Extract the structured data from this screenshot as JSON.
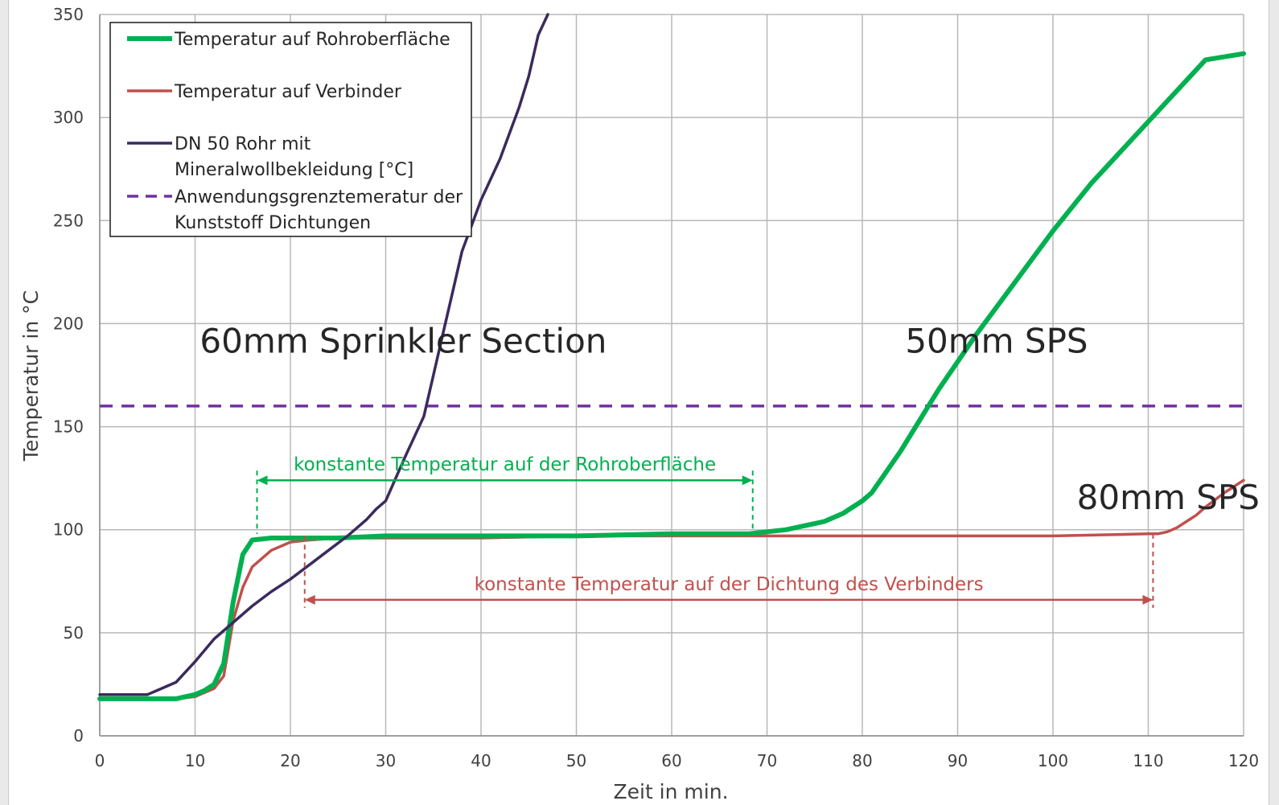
{
  "colors": {
    "green": "#00b050",
    "red": "#c0504d",
    "purple": "#3b2a5e",
    "dashed": "#7030a0",
    "grid": "#b8b8b8",
    "axis": "#8c8c8c"
  },
  "chart_data": {
    "type": "line",
    "xlabel": "Zeit in min.",
    "ylabel": "Temperatur  in °C",
    "xlim": [
      0,
      120
    ],
    "ylim": [
      0,
      350
    ],
    "x_ticks": [
      "0",
      "10",
      "20",
      "30",
      "40",
      "50",
      "60",
      "70",
      "80",
      "90",
      "100",
      "110",
      "120"
    ],
    "y_ticks": [
      "0",
      "50",
      "100",
      "150",
      "200",
      "250",
      "300",
      "350"
    ],
    "grid": true,
    "legend_position": "top-left",
    "series": [
      {
        "name": "Temperatur auf Rohroberfläche",
        "color": "#00b050",
        "style": "solid-thick",
        "x": [
          0,
          5,
          8,
          10,
          11,
          12,
          13,
          14,
          15,
          16,
          18,
          20,
          25,
          30,
          40,
          50,
          60,
          68,
          70,
          72,
          74,
          76,
          78,
          80,
          81,
          84,
          88,
          92,
          96,
          100,
          104,
          108,
          112,
          116,
          120
        ],
        "y": [
          18,
          18,
          18,
          20,
          22,
          25,
          35,
          65,
          88,
          95,
          96,
          96,
          96,
          97,
          97,
          97,
          98,
          98,
          99,
          100,
          102,
          104,
          108,
          114,
          118,
          138,
          168,
          195,
          220,
          245,
          268,
          288,
          308,
          328,
          331
        ]
      },
      {
        "name": "Temperatur auf Verbinder",
        "color": "#c0504d",
        "style": "solid",
        "x": [
          0,
          5,
          8,
          10,
          11,
          12,
          13,
          14,
          15,
          16,
          18,
          20,
          22,
          25,
          30,
          40,
          50,
          60,
          70,
          80,
          90,
          100,
          110,
          111,
          112,
          113,
          114,
          115,
          116,
          118,
          120
        ],
        "y": [
          18,
          18,
          18,
          19,
          21,
          23,
          29,
          56,
          72,
          82,
          90,
          94,
          95,
          96,
          96,
          96,
          97,
          97,
          97,
          97,
          97,
          97,
          98,
          98,
          99,
          101,
          104,
          107,
          111,
          118,
          124
        ]
      },
      {
        "name": "DN 50 Rohr mit\nMineralwollbekleidung [°C]",
        "name_lines": [
          "DN 50 Rohr mit",
          "Mineralwollbekleidung [°C]"
        ],
        "color": "#3b2a5e",
        "style": "solid",
        "x": [
          0,
          5,
          6,
          8,
          10,
          12,
          14,
          16,
          18,
          20,
          22,
          24,
          26,
          28,
          29,
          30,
          32,
          34,
          35,
          36,
          37,
          38,
          40,
          42,
          44,
          45,
          46,
          47
        ],
        "y": [
          20,
          20,
          22,
          26,
          36,
          47,
          55,
          63,
          70,
          76,
          83,
          90,
          97,
          105,
          110,
          114,
          135,
          155,
          175,
          195,
          215,
          235,
          260,
          280,
          305,
          320,
          340,
          350
        ]
      },
      {
        "name": "Anwendungsgrenztemeratur der\nKunststoff Dichtungen",
        "name_lines": [
          "Anwendungsgrenztemeratur der",
          "Kunststoff Dichtungen"
        ],
        "color": "#7030a0",
        "style": "dashed",
        "x": [
          0,
          120
        ],
        "y": [
          160,
          160
        ]
      }
    ],
    "annotations": [
      {
        "text": "60mm Sprinkler Section",
        "x": 10.5,
        "y": 186,
        "kind": "label"
      },
      {
        "text": "50mm SPS",
        "x": 84.5,
        "y": 186,
        "kind": "label"
      },
      {
        "text": "80mm SPS",
        "x": 102.5,
        "y": 110,
        "kind": "label"
      },
      {
        "text": "konstante Temperatur auf der Rohroberfläche",
        "x_start": 16.5,
        "x_end": 68.5,
        "y": 124,
        "color": "#00b050",
        "kind": "span"
      },
      {
        "text": "konstante Temperatur auf der Dichtung des Verbinders",
        "x_start": 21.5,
        "x_end": 110.5,
        "y": 66,
        "color": "#c0504d",
        "kind": "span"
      }
    ]
  }
}
